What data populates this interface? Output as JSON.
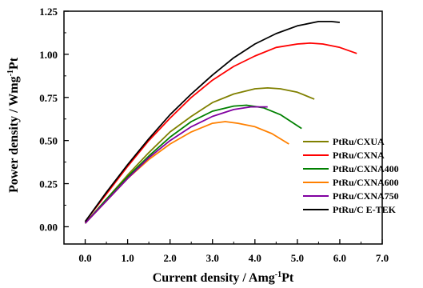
{
  "chart_data": {
    "type": "line",
    "title": "",
    "xlabel": {
      "main": "Current density / Amg",
      "sup": "-1",
      "tail": "Pt"
    },
    "ylabel": {
      "main": "Power density / Wmg",
      "sup": "-1",
      "tail": "Pt"
    },
    "xlim": [
      -0.5,
      7.0
    ],
    "ylim": [
      -0.1,
      1.25
    ],
    "xticks": [
      0.0,
      1.0,
      2.0,
      3.0,
      4.0,
      5.0,
      6.0,
      7.0
    ],
    "xtick_labels": [
      "0.0",
      "1.0",
      "2.0",
      "3.0",
      "4.0",
      "5.0",
      "6.0",
      "7.0"
    ],
    "yticks": [
      0.0,
      0.25,
      0.5,
      0.75,
      1.0,
      1.25
    ],
    "ytick_labels": [
      "0.00",
      "0.25",
      "0.50",
      "0.75",
      "1.00",
      "1.25"
    ],
    "grid": false,
    "legend_position": "bottom-right",
    "series": [
      {
        "name": "PtRu/CXUA",
        "color": "#808000",
        "x": [
          0.0,
          0.5,
          1.0,
          1.5,
          2.0,
          2.5,
          3.0,
          3.5,
          4.0,
          4.3,
          4.6,
          5.0,
          5.4
        ],
        "y": [
          0.02,
          0.16,
          0.3,
          0.43,
          0.55,
          0.64,
          0.72,
          0.77,
          0.8,
          0.805,
          0.8,
          0.78,
          0.74
        ]
      },
      {
        "name": "PtRu/CXNA",
        "color": "#ff0000",
        "x": [
          0.0,
          0.5,
          1.0,
          1.5,
          2.0,
          2.5,
          3.0,
          3.5,
          4.0,
          4.5,
          5.0,
          5.3,
          5.6,
          6.0,
          6.4
        ],
        "y": [
          0.03,
          0.19,
          0.35,
          0.5,
          0.63,
          0.75,
          0.85,
          0.93,
          0.99,
          1.04,
          1.06,
          1.065,
          1.06,
          1.04,
          1.005
        ]
      },
      {
        "name": "PtRu/CXNA400",
        "color": "#008000",
        "x": [
          0.0,
          0.5,
          1.0,
          1.5,
          2.0,
          2.5,
          3.0,
          3.5,
          3.8,
          4.2,
          4.6,
          5.1
        ],
        "y": [
          0.02,
          0.16,
          0.29,
          0.41,
          0.52,
          0.61,
          0.67,
          0.7,
          0.705,
          0.69,
          0.65,
          0.57
        ]
      },
      {
        "name": "PtRu/CXNA600",
        "color": "#ff8000",
        "x": [
          0.0,
          0.5,
          1.0,
          1.5,
          2.0,
          2.5,
          3.0,
          3.3,
          3.6,
          4.0,
          4.4,
          4.8
        ],
        "y": [
          0.02,
          0.15,
          0.28,
          0.39,
          0.48,
          0.55,
          0.6,
          0.61,
          0.6,
          0.58,
          0.54,
          0.48
        ]
      },
      {
        "name": "PtRu/CXNA750",
        "color": "#8000a0",
        "x": [
          0.0,
          0.5,
          1.0,
          1.5,
          2.0,
          2.5,
          3.0,
          3.5,
          3.9,
          4.3
        ],
        "y": [
          0.02,
          0.15,
          0.28,
          0.4,
          0.5,
          0.58,
          0.64,
          0.68,
          0.695,
          0.695
        ]
      },
      {
        "name": "PtRu/C E-TEK",
        "color": "#000000",
        "x": [
          0.0,
          0.5,
          1.0,
          1.5,
          2.0,
          2.5,
          3.0,
          3.5,
          4.0,
          4.5,
          5.0,
          5.5,
          5.8,
          6.0
        ],
        "y": [
          0.03,
          0.2,
          0.36,
          0.51,
          0.65,
          0.77,
          0.88,
          0.98,
          1.06,
          1.12,
          1.165,
          1.19,
          1.19,
          1.185
        ]
      }
    ]
  }
}
